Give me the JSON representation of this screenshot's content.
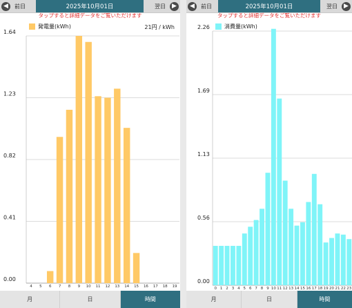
{
  "left": {
    "prev_label": "前日",
    "next_label": "翌日",
    "date": "2025年10月01日",
    "notice": "タップすると詳細データをご覧いただけます",
    "legend_label": "発電量(kWh)",
    "rate": "21円 / kWh",
    "tabs": [
      {
        "label": "月",
        "active": false
      },
      {
        "label": "日",
        "active": false
      },
      {
        "label": "時間",
        "active": true
      }
    ]
  },
  "right": {
    "prev_label": "前日",
    "next_label": "翌日",
    "date": "2025年10月01日",
    "notice": "タップすると詳細データをご覧いただけます",
    "legend_label": "消費量(kWh)",
    "tabs": [
      {
        "label": "月",
        "active": false
      },
      {
        "label": "日",
        "active": false
      },
      {
        "label": "時間",
        "active": true
      }
    ]
  },
  "colors": {
    "generation": "#ffc966",
    "consumption": "#7ff4f8",
    "accent": "#2f6f80",
    "notice": "#e23030"
  },
  "icons": {
    "prev": "arrow-left-circle-icon",
    "next": "arrow-right-circle-icon"
  },
  "chart_data": [
    {
      "type": "bar",
      "title": "",
      "xlabel": "",
      "ylabel": "",
      "categories": [
        "4",
        "5",
        "6",
        "7",
        "8",
        "9",
        "10",
        "11",
        "12",
        "13",
        "14",
        "15",
        "16",
        "17",
        "18",
        "19"
      ],
      "series": [
        {
          "name": "発電量(kWh)",
          "values": [
            0,
            0,
            0.08,
            0.97,
            1.15,
            1.64,
            1.6,
            1.24,
            1.23,
            1.29,
            1.03,
            0.2,
            0,
            0,
            0,
            0
          ]
        }
      ],
      "ylim": [
        0,
        1.64
      ],
      "yticks": [
        "0.00",
        "0.41",
        "0.82",
        "1.23",
        "1.64"
      ],
      "grid": true,
      "legend": "top-left"
    },
    {
      "type": "bar",
      "title": "",
      "xlabel": "",
      "ylabel": "",
      "categories": [
        "0",
        "1",
        "2",
        "3",
        "4",
        "5",
        "6",
        "7",
        "8",
        "9",
        "10",
        "11",
        "12",
        "13",
        "14",
        "15",
        "16",
        "17",
        "18",
        "19",
        "20",
        "21",
        "22",
        "23"
      ],
      "series": [
        {
          "name": "消費量(kWh)",
          "values": [
            0.35,
            0.35,
            0.35,
            0.35,
            0.35,
            0.46,
            0.52,
            0.58,
            0.68,
            1.0,
            2.28,
            1.66,
            0.93,
            0.68,
            0.53,
            0.56,
            0.74,
            0.99,
            0.72,
            0.38,
            0.42,
            0.46,
            0.45,
            0.41
          ]
        }
      ],
      "ylim": [
        0,
        2.26
      ],
      "yticks": [
        "0.00",
        "0.56",
        "1.13",
        "1.69",
        "2.26"
      ],
      "grid": true,
      "legend": "top-left"
    }
  ]
}
